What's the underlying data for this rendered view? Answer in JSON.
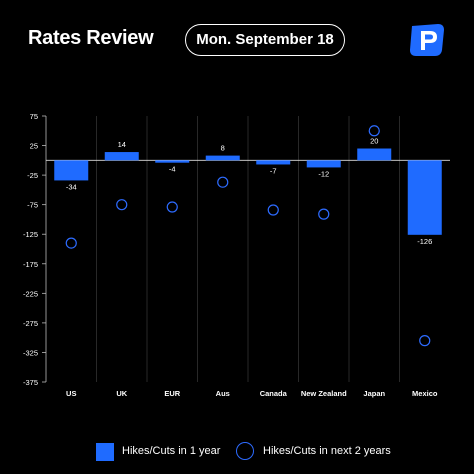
{
  "header": {
    "title": "Rates Review",
    "date": "Mon. September 18",
    "logo_icon": "pepperstone-logo-icon"
  },
  "colors": {
    "bar": "#1f6bff",
    "circle": "#2d6bff",
    "background": "#000000",
    "text": "#ffffff",
    "axis": "#bbbbbb"
  },
  "legend": {
    "bar_label": "Hikes/Cuts in 1 year",
    "circle_label": "Hikes/Cuts in next 2 years"
  },
  "chart_data": {
    "type": "bar",
    "categories": [
      "US",
      "UK",
      "EUR",
      "Aus",
      "Canada",
      "New Zealand",
      "Japan",
      "Mexico"
    ],
    "series": [
      {
        "name": "Hikes/Cuts in 1 year",
        "mark": "bar",
        "values": [
          -34,
          14,
          -4,
          8,
          -7,
          -12,
          20,
          -126
        ]
      },
      {
        "name": "Hikes/Cuts in next 2 years",
        "mark": "circle",
        "values": [
          -140,
          -75,
          -79,
          -37,
          -84,
          -91,
          50,
          -305
        ]
      }
    ],
    "data_labels": [
      "-34",
      "14",
      "-4",
      "8",
      "-7",
      "-12",
      "20",
      "-126"
    ],
    "y_ticks": [
      75,
      25,
      -25,
      -75,
      -125,
      -175,
      -225,
      -275,
      -325,
      -375
    ],
    "ylim": [
      -375,
      75
    ],
    "xlabel": "",
    "ylabel": "",
    "grid": "vertical separators",
    "legend_position": "bottom"
  }
}
